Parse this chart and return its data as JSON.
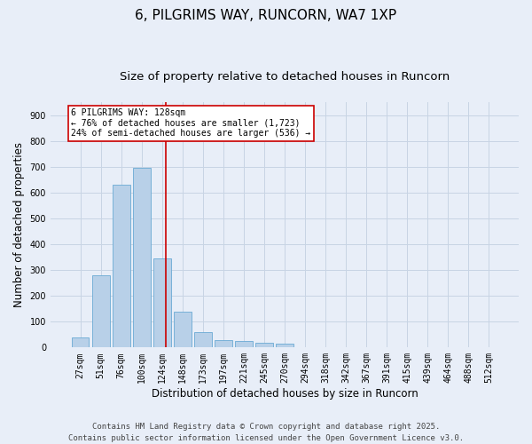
{
  "title": "6, PILGRIMS WAY, RUNCORN, WA7 1XP",
  "subtitle": "Size of property relative to detached houses in Runcorn",
  "xlabel": "Distribution of detached houses by size in Runcorn",
  "ylabel": "Number of detached properties",
  "categories": [
    "27sqm",
    "51sqm",
    "76sqm",
    "100sqm",
    "124sqm",
    "148sqm",
    "173sqm",
    "197sqm",
    "221sqm",
    "245sqm",
    "270sqm",
    "294sqm",
    "318sqm",
    "342sqm",
    "367sqm",
    "391sqm",
    "415sqm",
    "439sqm",
    "464sqm",
    "488sqm",
    "512sqm"
  ],
  "values": [
    40,
    280,
    630,
    695,
    345,
    140,
    60,
    30,
    25,
    20,
    15,
    0,
    0,
    0,
    0,
    0,
    0,
    0,
    0,
    0,
    0
  ],
  "bar_color": "#b8d0e8",
  "bar_edge_color": "#6aaad4",
  "grid_color": "#c8d4e4",
  "background_color": "#e8eef8",
  "annotation_label": "6 PILGRIMS WAY: 128sqm",
  "annotation_line1": "← 76% of detached houses are smaller (1,723)",
  "annotation_line2": "24% of semi-detached houses are larger (536) →",
  "annotation_box_color": "#ffffff",
  "annotation_box_edge": "#cc0000",
  "vline_color": "#cc0000",
  "footer_line1": "Contains HM Land Registry data © Crown copyright and database right 2025.",
  "footer_line2": "Contains public sector information licensed under the Open Government Licence v3.0.",
  "ylim": [
    0,
    950
  ],
  "yticks": [
    0,
    100,
    200,
    300,
    400,
    500,
    600,
    700,
    800,
    900
  ],
  "title_fontsize": 11,
  "subtitle_fontsize": 9.5,
  "axis_label_fontsize": 8.5,
  "tick_fontsize": 7,
  "annotation_fontsize": 7,
  "footer_fontsize": 6.5,
  "vline_x": 4.17
}
